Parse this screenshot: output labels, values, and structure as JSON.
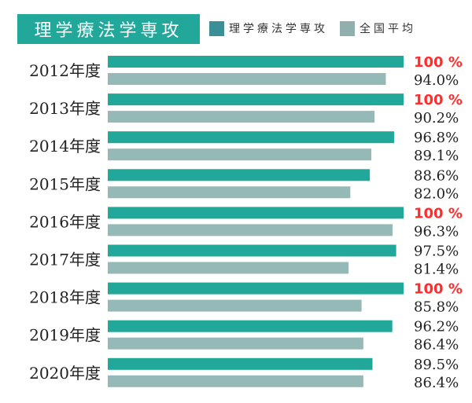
{
  "title": "理学療法学専攻",
  "legend": {
    "series1": "理学療法学専攻",
    "series2": "全国平均"
  },
  "colors": {
    "series1": "#22a89a",
    "series2": "#95b9b6",
    "title_bg": "#22a89a",
    "legend_swatch1": "#3b8f96",
    "legend_swatch2": "#8fb0ae",
    "highlight": "#ff2d2d",
    "text": "#222222"
  },
  "chart_data": {
    "type": "bar",
    "orientation": "horizontal",
    "title": "理学療法学専攻",
    "categories": [
      "2012年度",
      "2013年度",
      "2014年度",
      "2015年度",
      "2016年度",
      "2017年度",
      "2018年度",
      "2019年度",
      "2020年度"
    ],
    "series": [
      {
        "name": "理学療法学専攻",
        "values": [
          100,
          100,
          96.8,
          88.6,
          100,
          97.5,
          100,
          96.2,
          89.5
        ],
        "labels": [
          "100 %",
          "100 %",
          "96.8%",
          "88.6%",
          "100 %",
          "97.5%",
          "100 %",
          "96.2%",
          "89.5%"
        ]
      },
      {
        "name": "全国平均",
        "values": [
          94.0,
          90.2,
          89.1,
          82.0,
          96.3,
          81.4,
          85.8,
          86.4,
          86.4
        ],
        "labels": [
          "94.0%",
          "90.2%",
          "89.1%",
          "82.0%",
          "96.3%",
          "81.4%",
          "85.8%",
          "86.4%",
          "86.4%"
        ]
      }
    ],
    "xlim": [
      0,
      100
    ],
    "grid": false,
    "legend_position": "top"
  }
}
